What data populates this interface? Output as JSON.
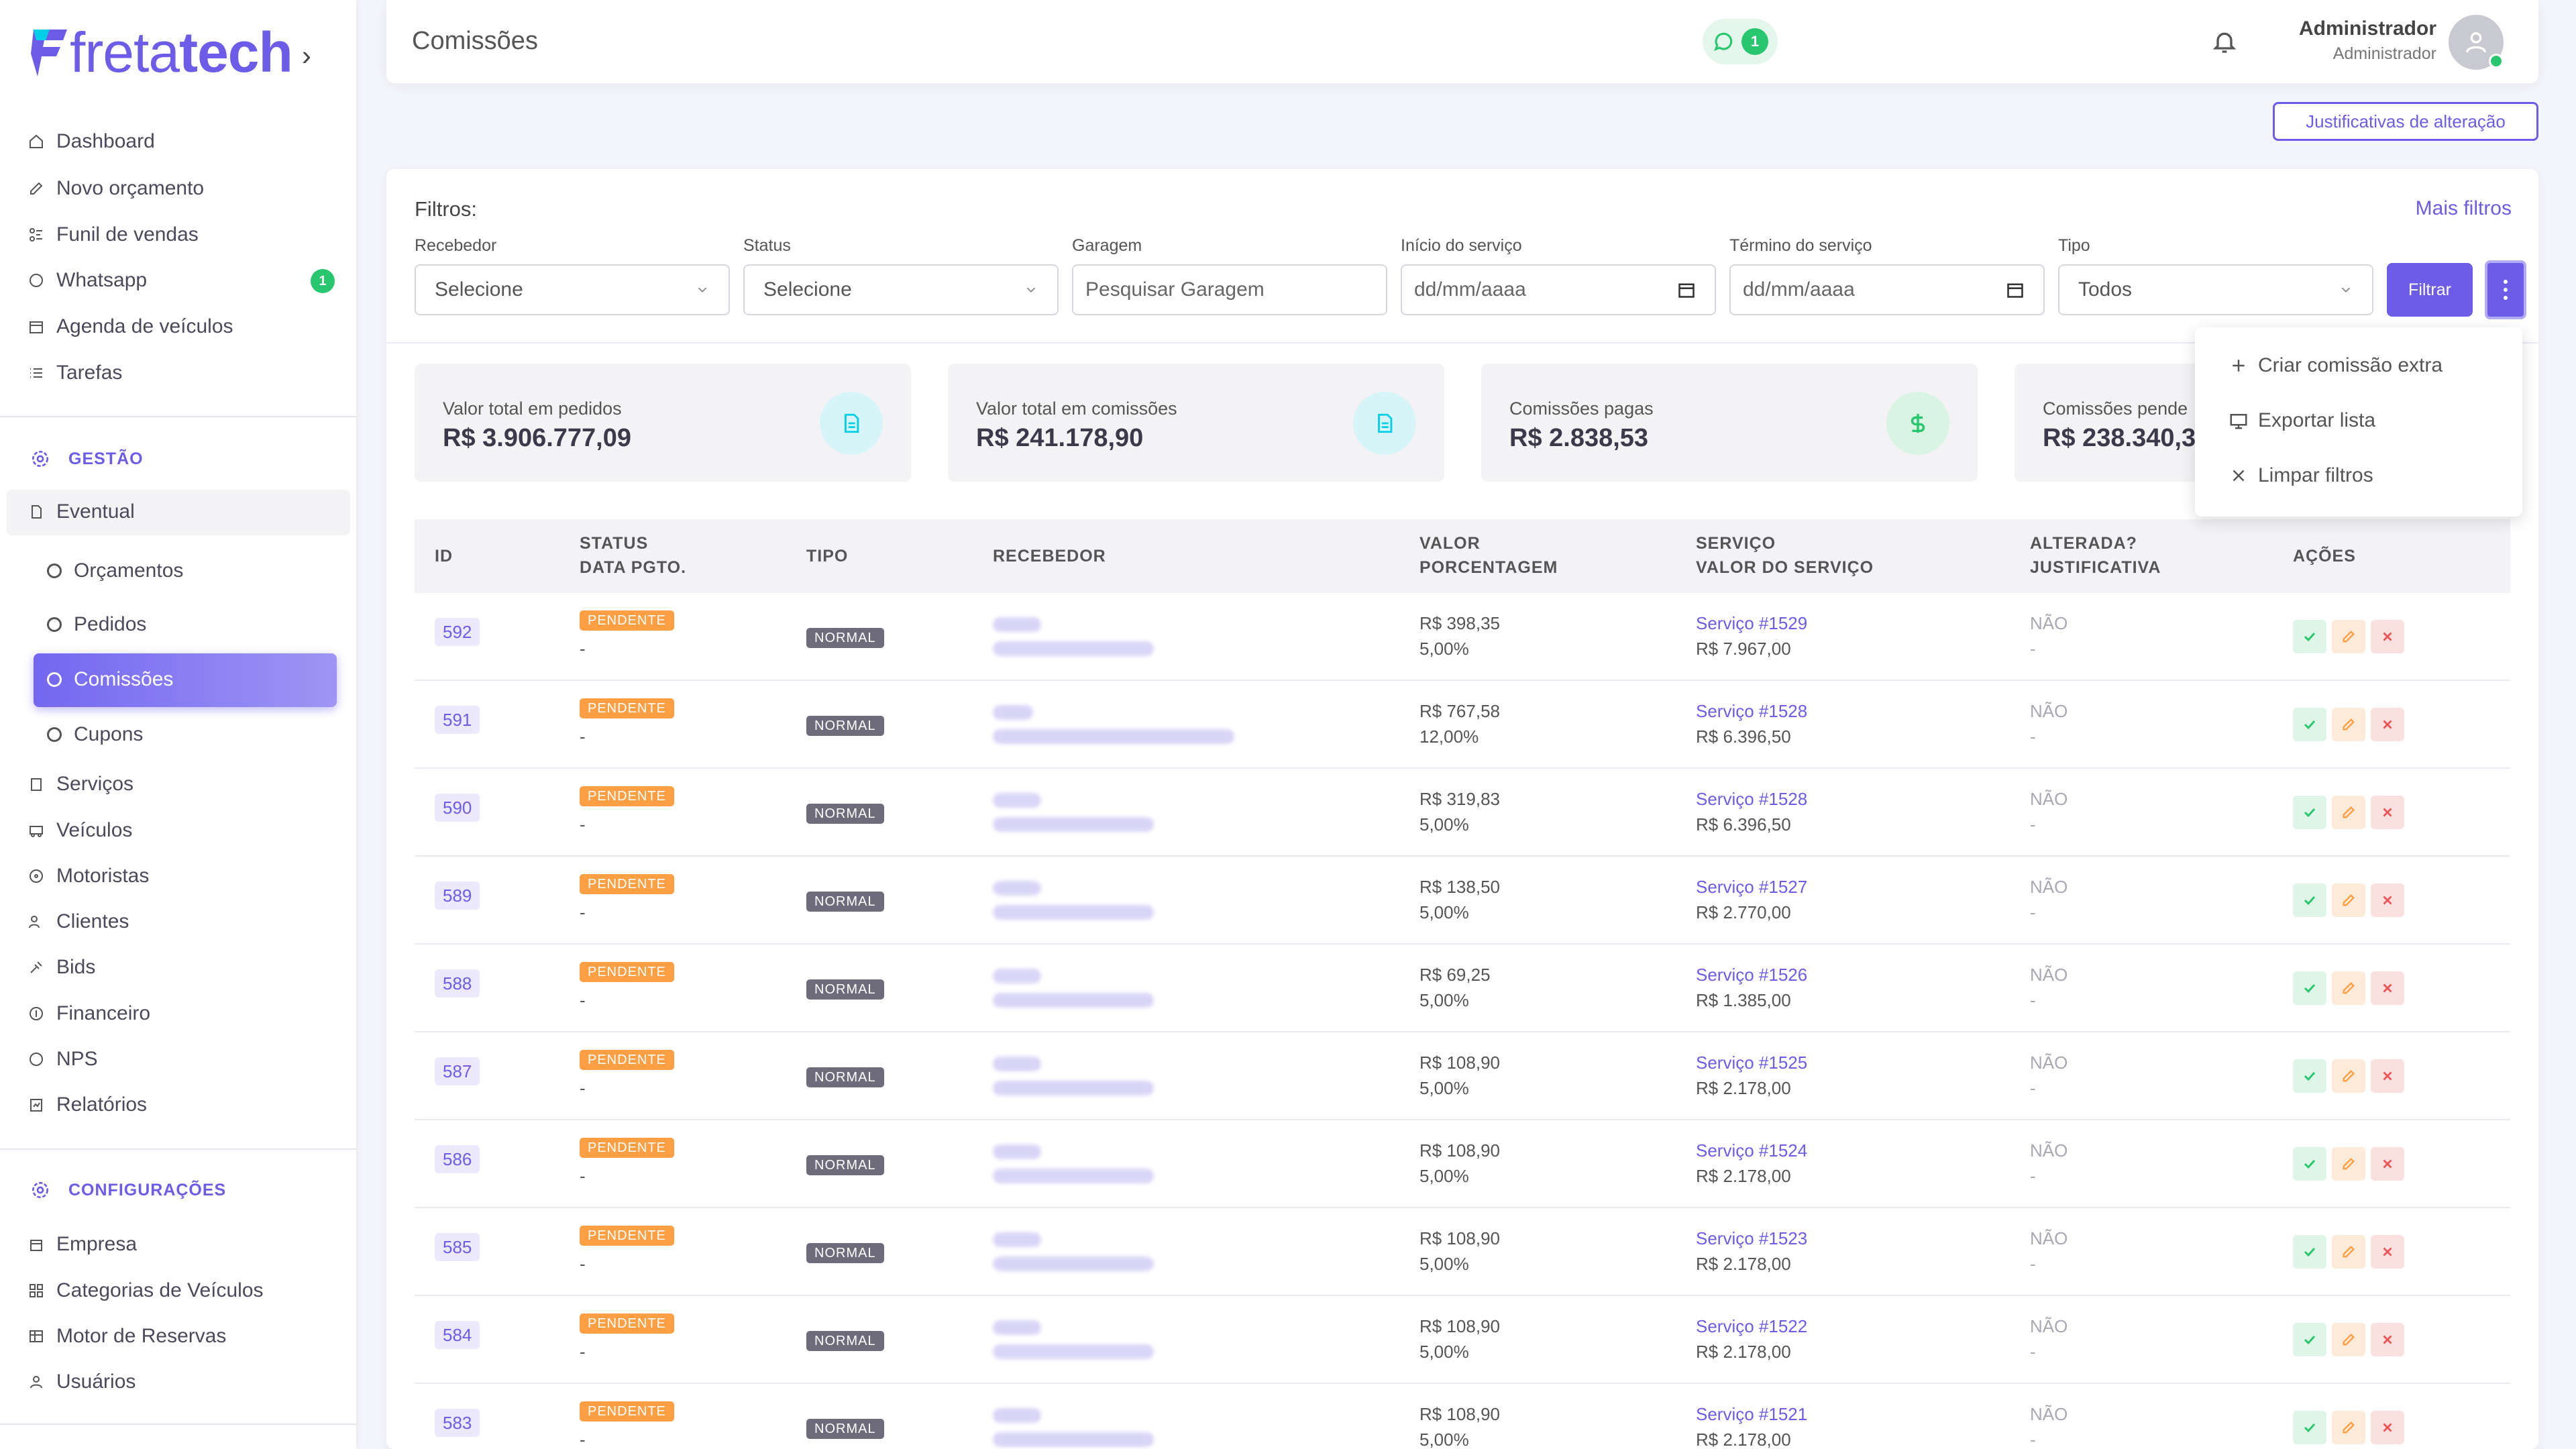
{
  "brand": {
    "logo_text_light": "freta",
    "logo_text_bold": "tech",
    "chevron": "›"
  },
  "sidebar": {
    "main_items": [
      {
        "label": "Dashboard",
        "icon": "home-icon"
      },
      {
        "label": "Novo orçamento",
        "icon": "edit-icon"
      },
      {
        "label": "Funil de vendas",
        "icon": "funnel-icon"
      },
      {
        "label": "Whatsapp",
        "icon": "whatsapp-icon",
        "badge": "1"
      },
      {
        "label": "Agenda de veículos",
        "icon": "calendar-icon"
      },
      {
        "label": "Tarefas",
        "icon": "list-icon"
      }
    ],
    "gestao_header": "GESTÃO",
    "eventual_label": "Eventual",
    "sub_items": [
      "Orçamentos",
      "Pedidos",
      "Comissões",
      "Cupons"
    ],
    "gestao_items": [
      "Serviços",
      "Veículos",
      "Motoristas",
      "Clientes",
      "Bids",
      "Financeiro",
      "NPS",
      "Relatórios"
    ],
    "config_header": "CONFIGURAÇÕES",
    "config_items": [
      "Empresa",
      "Categorias de Veículos",
      "Motor de Reservas",
      "Usuários"
    ]
  },
  "topbar": {
    "title": "Comissões",
    "whatsapp_count": "1",
    "user_name": "Administrador",
    "user_role": "Administrador"
  },
  "justificativas_button": "Justificativas de alteração",
  "filters": {
    "title": "Filtros:",
    "mais_filtros": "Mais filtros",
    "fields": [
      {
        "label": "Recebedor",
        "value": "Selecione"
      },
      {
        "label": "Status",
        "value": "Selecione"
      },
      {
        "label": "Garagem",
        "placeholder": "Pesquisar Garagem"
      },
      {
        "label": "Início do serviço",
        "value": "dd/mm/aaaa"
      },
      {
        "label": "Término do serviço",
        "value": "dd/mm/aaaa"
      },
      {
        "label": "Tipo",
        "value": "Todos"
      }
    ],
    "filtrar_button": "Filtrar"
  },
  "dropdown_menu": [
    "Criar comissão extra",
    "Exportar lista",
    "Limpar filtros"
  ],
  "stats": [
    {
      "label": "Valor total em pedidos",
      "value": "R$ 3.906.777,09",
      "icon": "document-icon",
      "color": "#00cfe8"
    },
    {
      "label": "Valor total em comissões",
      "value": "R$ 241.178,90",
      "icon": "document-icon",
      "color": "#00cfe8"
    },
    {
      "label": "Comissões pagas",
      "value": "R$ 2.838,53",
      "icon": "dollar-icon",
      "color": "#28c76f"
    },
    {
      "label": "Comissões pende",
      "value": "R$ 238.340,3",
      "icon": "clock-icon",
      "color": "#ff9f43"
    }
  ],
  "table": {
    "headers": {
      "id": "ID",
      "status": "STATUS",
      "data_pgto": "DATA PGTO.",
      "tipo": "TIPO",
      "recebedor": "RECEBEDOR",
      "valor": "VALOR",
      "porcentagem": "PORCENTAGEM",
      "servico": "SERVIÇO",
      "valor_servico": "VALOR DO SERVIÇO",
      "alterada": "ALTERADA?",
      "justificativa": "JUSTIFICATIVA",
      "acoes": "AÇÕES"
    },
    "rows": [
      {
        "id": "592",
        "status": "PENDENTE",
        "data": "-",
        "tipo": "NORMAL",
        "valor": "R$ 398,35",
        "pct": "5,00%",
        "servico": "Serviço #1529",
        "valor_servico": "R$ 7.967,00",
        "alterada": "NÃO",
        "just": "-"
      },
      {
        "id": "591",
        "status": "PENDENTE",
        "data": "-",
        "tipo": "NORMAL",
        "valor": "R$ 767,58",
        "pct": "12,00%",
        "servico": "Serviço #1528",
        "valor_servico": "R$ 6.396,50",
        "alterada": "NÃO",
        "just": "-"
      },
      {
        "id": "590",
        "status": "PENDENTE",
        "data": "-",
        "tipo": "NORMAL",
        "valor": "R$ 319,83",
        "pct": "5,00%",
        "servico": "Serviço #1528",
        "valor_servico": "R$ 6.396,50",
        "alterada": "NÃO",
        "just": "-"
      },
      {
        "id": "589",
        "status": "PENDENTE",
        "data": "-",
        "tipo": "NORMAL",
        "valor": "R$ 138,50",
        "pct": "5,00%",
        "servico": "Serviço #1527",
        "valor_servico": "R$ 2.770,00",
        "alterada": "NÃO",
        "just": "-"
      },
      {
        "id": "588",
        "status": "PENDENTE",
        "data": "-",
        "tipo": "NORMAL",
        "valor": "R$ 69,25",
        "pct": "5,00%",
        "servico": "Serviço #1526",
        "valor_servico": "R$ 1.385,00",
        "alterada": "NÃO",
        "just": "-"
      },
      {
        "id": "587",
        "status": "PENDENTE",
        "data": "-",
        "tipo": "NORMAL",
        "valor": "R$ 108,90",
        "pct": "5,00%",
        "servico": "Serviço #1525",
        "valor_servico": "R$ 2.178,00",
        "alterada": "NÃO",
        "just": "-"
      },
      {
        "id": "586",
        "status": "PENDENTE",
        "data": "-",
        "tipo": "NORMAL",
        "valor": "R$ 108,90",
        "pct": "5,00%",
        "servico": "Serviço #1524",
        "valor_servico": "R$ 2.178,00",
        "alterada": "NÃO",
        "just": "-"
      },
      {
        "id": "585",
        "status": "PENDENTE",
        "data": "-",
        "tipo": "NORMAL",
        "valor": "R$ 108,90",
        "pct": "5,00%",
        "servico": "Serviço #1523",
        "valor_servico": "R$ 2.178,00",
        "alterada": "NÃO",
        "just": "-"
      },
      {
        "id": "584",
        "status": "PENDENTE",
        "data": "-",
        "tipo": "NORMAL",
        "valor": "R$ 108,90",
        "pct": "5,00%",
        "servico": "Serviço #1522",
        "valor_servico": "R$ 2.178,00",
        "alterada": "NÃO",
        "just": "-"
      },
      {
        "id": "583",
        "status": "PENDENTE",
        "data": "-",
        "tipo": "NORMAL",
        "valor": "R$ 108,90",
        "pct": "5,00%",
        "servico": "Serviço #1521",
        "valor_servico": "R$ 2.178,00",
        "alterada": "NÃO",
        "just": "-"
      }
    ]
  }
}
